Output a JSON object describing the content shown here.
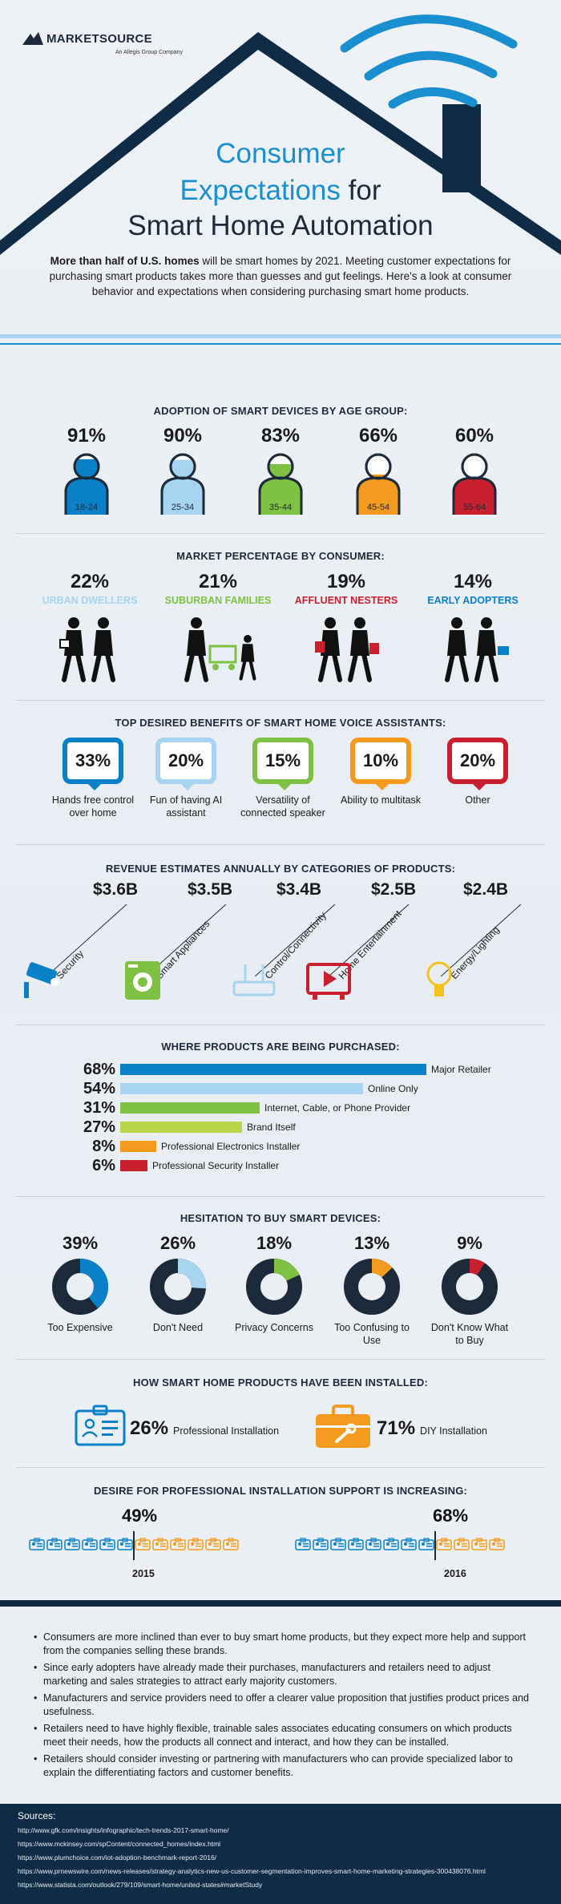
{
  "brand": {
    "name": "MARKETSOURCE",
    "tagline": "An Allegis Group Company"
  },
  "header": {
    "title_line1": "Consumer",
    "title_line2_main": "Expectations",
    "title_line2_tail": "for",
    "title_line3": "Smart Home Automation",
    "intro_bold": "More than half of U.S. homes",
    "intro_rest": "will be smart homes by 2021. Meeting customer expectations for purchasing smart products takes more than guesses and gut feelings. Here's a look at consumer behavior and expectations when considering purchasing smart home products."
  },
  "colors": {
    "dark_blue": "#0a80c8",
    "light_blue": "#a7d4f0",
    "green": "#7fc142",
    "orange": "#f49a1f",
    "red": "#c8202f",
    "navy": "#1c2a3a"
  },
  "age": {
    "title": "ADOPTION OF SMART DEVICES BY AGE GROUP:",
    "items": [
      {
        "pct": "91%",
        "group": "18-24",
        "fill": 0.91,
        "color": "#0a80c8"
      },
      {
        "pct": "90%",
        "group": "25-34",
        "fill": 0.9,
        "color": "#a7d4f0"
      },
      {
        "pct": "83%",
        "group": "35-44",
        "fill": 0.83,
        "color": "#7fc142"
      },
      {
        "pct": "66%",
        "group": "45-54",
        "fill": 0.66,
        "color": "#f49a1f"
      },
      {
        "pct": "60%",
        "group": "55-64",
        "fill": 0.6,
        "color": "#c8202f"
      }
    ]
  },
  "market": {
    "title": "MARKET PERCENTAGE BY CONSUMER:",
    "items": [
      {
        "pct": "22%",
        "label": "URBAN DWELLERS",
        "color": "#a7d4f0",
        "icon": "walking-couple-icon"
      },
      {
        "pct": "21%",
        "label": "SUBURBAN FAMILIES",
        "color": "#7fc142",
        "icon": "family-cart-icon"
      },
      {
        "pct": "19%",
        "label": "AFFLUENT NESTERS",
        "color": "#c8202f",
        "icon": "shopping-couple-icon"
      },
      {
        "pct": "14%",
        "label": "EARLY ADOPTERS",
        "color": "#0a80c8",
        "icon": "running-couple-icon"
      }
    ]
  },
  "benefits": {
    "title": "TOP DESIRED BENEFITS OF SMART HOME VOICE ASSISTANTS:",
    "items": [
      {
        "pct": "33%",
        "label": "Hands free control over home",
        "color": "#0a80c8"
      },
      {
        "pct": "20%",
        "label": "Fun of having AI assistant",
        "color": "#a7d4f0"
      },
      {
        "pct": "15%",
        "label": "Versatility of connected speaker",
        "color": "#7fc142"
      },
      {
        "pct": "10%",
        "label": "Ability to multitask",
        "color": "#f49a1f"
      },
      {
        "pct": "20%",
        "label": "Other",
        "color": "#c8202f"
      }
    ]
  },
  "revenue": {
    "title": "REVENUE ESTIMATES ANNUALLY BY CATEGORIES OF PRODUCTS:",
    "items": [
      {
        "amount": "$3.6B",
        "category": "Security",
        "color": "#0a80c8",
        "icon": "security-camera-icon"
      },
      {
        "amount": "$3.5B",
        "category": "Smart Appliances",
        "color": "#7fc142",
        "icon": "washing-machine-icon"
      },
      {
        "amount": "$3.4B",
        "category": "Control/Connectivity",
        "color": "#a7d4f0",
        "icon": "router-icon"
      },
      {
        "amount": "$2.5B",
        "category": "Home Entertainment",
        "color": "#c8202f",
        "icon": "media-player-icon"
      },
      {
        "amount": "$2.4B",
        "category": "Energy/Lighting",
        "color": "#f4c21f",
        "icon": "lightbulb-icon"
      }
    ]
  },
  "purchase": {
    "title": "WHERE PRODUCTS ARE BEING PURCHASED:",
    "items": [
      {
        "pct": "68%",
        "value": 68,
        "label": "Major Retailer",
        "color": "#0a80c8"
      },
      {
        "pct": "54%",
        "value": 54,
        "label": "Online Only",
        "color": "#a7d4f0"
      },
      {
        "pct": "31%",
        "value": 31,
        "label": "Internet, Cable, or Phone Provider",
        "color": "#7fc142"
      },
      {
        "pct": "27%",
        "value": 27,
        "label": "Brand Itself",
        "color": "#b9d64a"
      },
      {
        "pct": "8%",
        "value": 8,
        "label": "Professional Electronics Installer",
        "color": "#f49a1f"
      },
      {
        "pct": "6%",
        "value": 6,
        "label": "Professional Security Installer",
        "color": "#c8202f"
      }
    ]
  },
  "hesitation": {
    "title": "HESITATION TO BUY SMART DEVICES:",
    "items": [
      {
        "pct": "39%",
        "value": 39,
        "label": "Too Expensive",
        "color": "#0a80c8"
      },
      {
        "pct": "26%",
        "value": 26,
        "label": "Don't Need",
        "color": "#a7d4f0"
      },
      {
        "pct": "18%",
        "value": 18,
        "label": "Privacy Concerns",
        "color": "#7fc142"
      },
      {
        "pct": "13%",
        "value": 13,
        "label": "Too Confusing to Use",
        "color": "#f49a1f"
      },
      {
        "pct": "9%",
        "value": 9,
        "label": "Don't Know What to Buy",
        "color": "#c8202f"
      }
    ]
  },
  "installed": {
    "title": "HOW SMART HOME PRODUCTS HAVE BEEN INSTALLED:",
    "professional_pct": "26%",
    "professional_label": "Professional Installation",
    "diy_pct": "71%",
    "diy_label": "DIY Installation"
  },
  "support": {
    "title": "DESIRE FOR PROFESSIONAL INSTALLATION SUPPORT IS INCREASING:",
    "y2015_pct": "49%",
    "y2015": "2015",
    "y2015_share": 0.49,
    "y2016_pct": "68%",
    "y2016": "2016",
    "y2016_share": 0.68
  },
  "bullets": [
    "Consumers are more inclined than ever to buy smart home products, but they expect more help and support from the companies selling these brands.",
    "Since early adopters have already made their purchases, manufacturers and retailers need to adjust marketing and sales strategies to attract early majority customers.",
    "Manufacturers and service providers need to offer a clearer value proposition that justifies product prices and usefulness.",
    "Retailers need to have highly flexible, trainable sales associates educating consumers on which products meet their needs, how the products all connect and interact, and how they can be installed.",
    "Retailers should consider investing or partnering with manufacturers who can provide specialized labor to explain the differentiating factors and customer benefits."
  ],
  "sources": {
    "title": "Sources:",
    "links": [
      "http://www.gfk.com/insights/infographic/tech-trends-2017-smart-home/",
      "https://www.mckinsey.com/spContent/connected_homes/index.html",
      "https://www.plumchoice.com/iot-adoption-benchmark-report-2016/",
      "https://www.prnewswire.com/news-releases/strategy-analytics-new-us-customer-segmentation-improves-smart-home-marketing-strategies-300438076.html",
      "https://www.statista.com/outlook/279/109/smart-home/united-states#marketStudy"
    ]
  }
}
